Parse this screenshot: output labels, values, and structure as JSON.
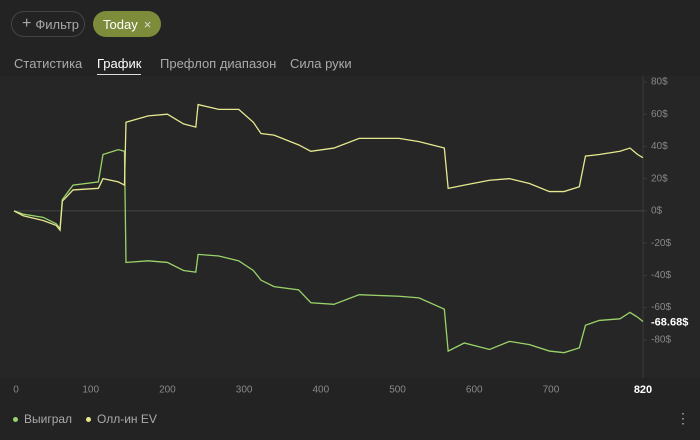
{
  "filters": [
    "Фильтр",
    "Today"
  ],
  "tabs": [
    "Статистика",
    "График",
    "Префлоп диапазон",
    "Сила руки"
  ],
  "active_tab": 1,
  "chart_data": {
    "type": "line",
    "x": [
      0,
      12,
      38,
      55,
      60,
      63,
      77,
      110,
      116,
      136,
      144,
      146,
      175,
      200,
      221,
      237,
      240,
      267,
      293,
      312,
      322,
      339,
      371,
      387,
      417,
      450,
      502,
      528,
      561,
      566,
      587,
      620,
      646,
      672,
      698,
      717,
      737,
      745,
      763,
      790,
      803,
      813,
      820
    ],
    "series": [
      {
        "name": "Выиграл",
        "color": "#9ad36a",
        "values": [
          0,
          -2,
          -4,
          -8,
          -11,
          7,
          16,
          18,
          35,
          38,
          37,
          -32,
          -31,
          -32,
          -37,
          -38,
          -27,
          -28,
          -31,
          -37,
          -43,
          -47,
          -49,
          -57,
          -58,
          -52,
          -53,
          -54,
          -61,
          -87,
          -82,
          -86,
          -81,
          -83,
          -87,
          -88,
          -85,
          -71,
          -68,
          -67,
          -63,
          -66,
          -68.68
        ],
        "value_labels": [
          null,
          null,
          null,
          null,
          null,
          null,
          null,
          null,
          null,
          null,
          null,
          null,
          null,
          null,
          null,
          null,
          null,
          null,
          null,
          null,
          null,
          null,
          null,
          null,
          null,
          null,
          null,
          null,
          null,
          null,
          null,
          null,
          null,
          null,
          null,
          null,
          null,
          null,
          null,
          null,
          null,
          null,
          "-68.68$"
        ]
      },
      {
        "name": "Олл-ин EV",
        "color": "#e6e890",
        "values": [
          0,
          -3,
          -6,
          -9,
          -12,
          6,
          13,
          14,
          20,
          18,
          16,
          55,
          59,
          60,
          54,
          52,
          66,
          63,
          63,
          55,
          48,
          47,
          41,
          37,
          39,
          45,
          45,
          43,
          39,
          14,
          16,
          19,
          20,
          17,
          12,
          12,
          15,
          34,
          35,
          37,
          39,
          35,
          33
        ]
      }
    ],
    "xlim": [
      0,
      820
    ],
    "xticks": [
      0,
      100,
      200,
      300,
      400,
      500,
      600,
      700,
      820
    ],
    "ylim": [
      -100,
      80
    ],
    "yticks": [
      {
        "value": 80,
        "label": "80$"
      },
      {
        "value": 60,
        "label": "60$"
      },
      {
        "value": 40,
        "label": "40$"
      },
      {
        "value": 20,
        "label": "20$"
      },
      {
        "value": 0,
        "label": "0$"
      },
      {
        "value": -20,
        "label": "-20$"
      },
      {
        "value": -40,
        "label": "-40$"
      },
      {
        "value": -60,
        "label": "-60$"
      },
      {
        "value": -80,
        "label": "-80$"
      }
    ]
  }
}
